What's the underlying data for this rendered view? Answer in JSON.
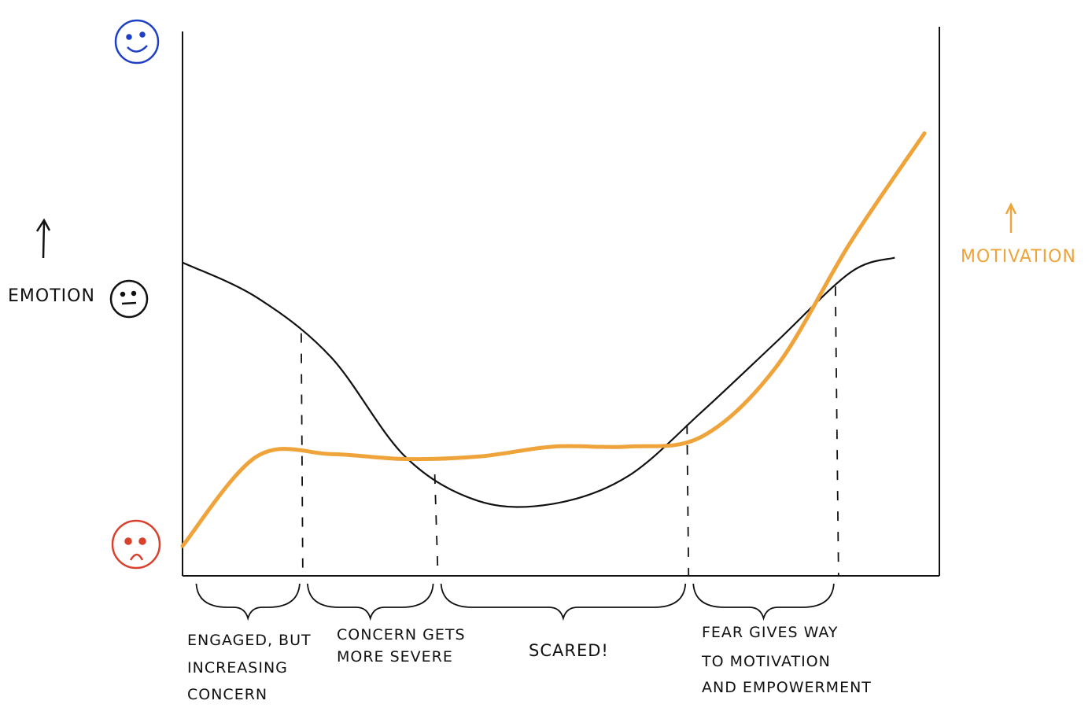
{
  "colors": {
    "emotion": "#111111",
    "motivation": "#eea43a",
    "happy": "#1f3fc4",
    "neutral": "#111111",
    "sad": "#d9412c"
  },
  "icons": {
    "top": "happy-face-icon",
    "middle": "neutral-face-icon",
    "bottom": "sad-face-icon"
  },
  "chart_data": {
    "type": "line",
    "title": "",
    "ylabel_left": "EMOTION",
    "ylabel_right": "MOTIVATION",
    "x": [
      0,
      10,
      20,
      30,
      40,
      50,
      60,
      70,
      80,
      90,
      100
    ],
    "xlim": [
      0,
      100
    ],
    "ylim": [
      0,
      100
    ],
    "grid": false,
    "series": [
      {
        "key": "emotion",
        "values": [
          63,
          56,
          44,
          24,
          15,
          14.5,
          20,
          33,
          47,
          61,
          64
        ]
      },
      {
        "key": "motivation",
        "values": [
          6,
          24,
          24.5,
          23.5,
          24,
          26,
          26,
          28,
          42,
          67,
          89
        ]
      }
    ],
    "phase_boundaries": [
      16,
      34,
      68,
      88
    ],
    "phases": [
      {
        "lines": [
          "ENGAGED, BUT",
          "INCREASING",
          "CONCERN"
        ]
      },
      {
        "lines": [
          "CONCERN GETS",
          "MORE SEVERE"
        ]
      },
      {
        "lines": [
          "SCARED!"
        ]
      },
      {
        "lines": [
          "FEAR GIVES WAY",
          "TO MOTIVATION",
          "AND EMPOWERMENT"
        ]
      }
    ]
  }
}
